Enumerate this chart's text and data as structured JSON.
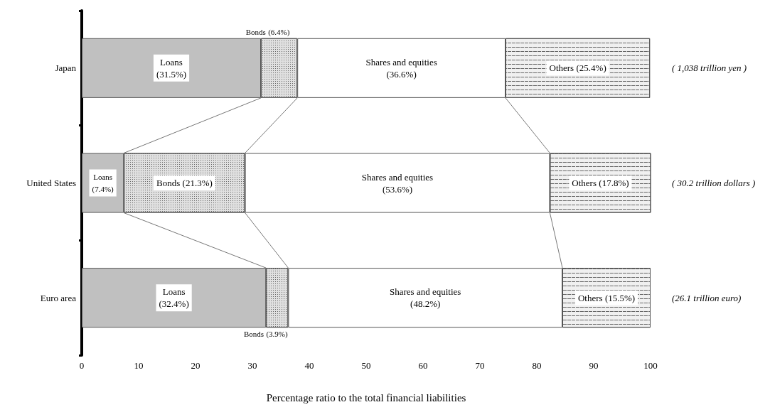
{
  "chart_data": {
    "type": "bar",
    "orientation": "horizontal",
    "stacked": true,
    "xlabel": "Percentage ratio to the total financial liabilities",
    "categories": [
      "Japan",
      "United States",
      "Euro area"
    ],
    "series": [
      {
        "name": "Loans",
        "color": "#c0c0c0",
        "values": [
          31.5,
          7.4,
          32.4
        ],
        "value_labels": [
          "(31.5%)",
          "(7.4%)",
          "(32.4%)"
        ]
      },
      {
        "name": "Bonds",
        "color": "#e0e0e0",
        "values": [
          6.4,
          21.3,
          3.9
        ],
        "value_labels": [
          "(6.4%)",
          "(21.3%)",
          "(3.9%)"
        ]
      },
      {
        "name": "Shares and equities",
        "color": "#ffffff",
        "values": [
          36.6,
          53.6,
          48.2
        ],
        "value_labels": [
          "(36.6%)",
          "(53.6%)",
          "(48.2%)"
        ]
      },
      {
        "name": "Others",
        "color": "#f0f0f0",
        "values": [
          25.4,
          17.8,
          15.5
        ],
        "value_labels": [
          "(25.4%)",
          "(17.8%)",
          "(15.5%)"
        ]
      }
    ],
    "annotations": [
      "( 1,038 trillion yen )",
      "( 30.2 trillion dollars )",
      "(26.1 trillion euro)"
    ],
    "xlim": [
      0,
      100
    ],
    "xticks": [
      0,
      10,
      20,
      30,
      40,
      50,
      60,
      70,
      80,
      90,
      100
    ],
    "grid": false,
    "legend": false
  }
}
